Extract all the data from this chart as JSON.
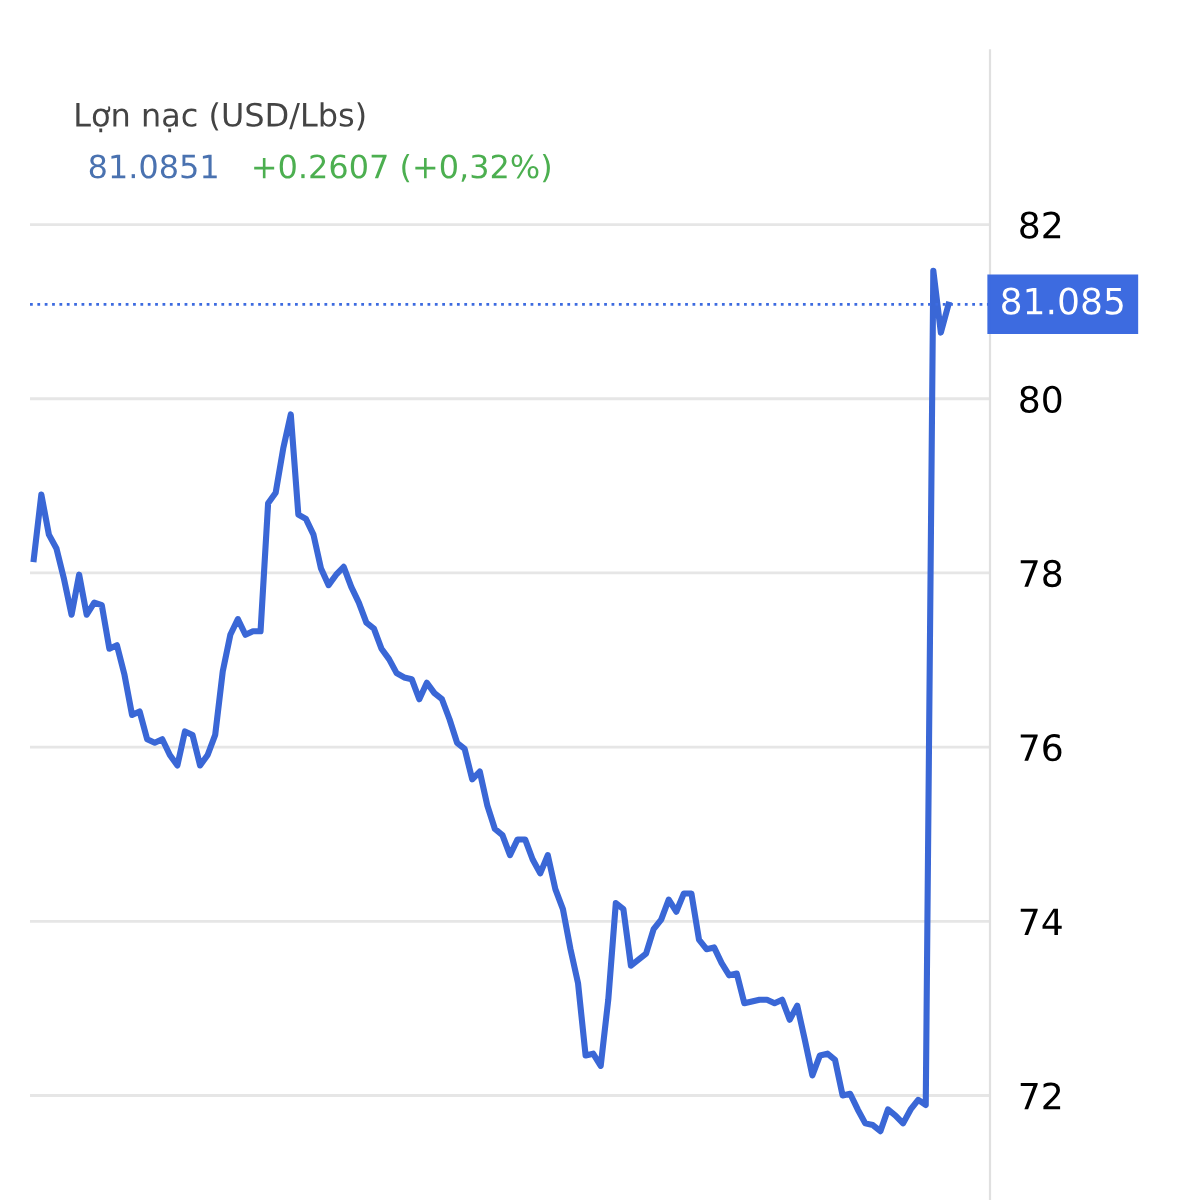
{
  "chart_data": {
    "type": "line",
    "title": "Lợn nạc (USD/Lbs)",
    "subtitle": "81.0851",
    "annotations": [
      "+0.2607 (+0,32%)"
    ],
    "categories": [
      null,
      null,
      null,
      null,
      null,
      null,
      null,
      null,
      null,
      null,
      null,
      null,
      null,
      null,
      null,
      null,
      null,
      null,
      null,
      null,
      null,
      null,
      null,
      null,
      null,
      null,
      null,
      null,
      null,
      null,
      null,
      null,
      null,
      null,
      null,
      null,
      null,
      null,
      null,
      null,
      null,
      null,
      null,
      null,
      null,
      null,
      null,
      null,
      null,
      null,
      null,
      null,
      null,
      null,
      null,
      null,
      null,
      null,
      null,
      null,
      null,
      null,
      null,
      null,
      null,
      null,
      null,
      null,
      null,
      null,
      null,
      null,
      null,
      null,
      null,
      null,
      null,
      null,
      null,
      null,
      null,
      null,
      null,
      null,
      null,
      null,
      null,
      null,
      null,
      null,
      null,
      null,
      null,
      null,
      null,
      null,
      null,
      null,
      null,
      null,
      null,
      null,
      null,
      null,
      null,
      null,
      null,
      null,
      null,
      null,
      null,
      null,
      null,
      null,
      null,
      null,
      null,
      null,
      null,
      null,
      null,
      null
    ],
    "series": [
      {
        "color": "#3a67d6",
        "values": [
          78.16,
          78.9,
          78.44,
          78.28,
          77.93,
          77.52,
          77.98,
          77.52,
          77.66,
          77.63,
          77.13,
          77.17,
          76.83,
          76.37,
          76.41,
          76.09,
          76.05,
          76.09,
          75.91,
          75.79,
          76.18,
          76.14,
          75.79,
          75.91,
          76.14,
          76.87,
          77.29,
          77.47,
          77.29,
          77.33,
          77.33,
          78.8,
          78.92,
          79.43,
          79.82,
          78.67,
          78.62,
          78.44,
          78.05,
          77.86,
          77.98,
          78.07,
          77.84,
          77.66,
          77.43,
          77.36,
          77.13,
          77.01,
          76.85,
          76.8,
          76.78,
          76.55,
          76.74,
          76.62,
          76.55,
          76.32,
          76.05,
          75.98,
          75.63,
          75.72,
          75.33,
          75.06,
          74.99,
          74.76,
          74.94,
          74.94,
          74.71,
          74.55,
          74.76,
          74.37,
          74.14,
          73.68,
          73.29,
          72.46,
          72.48,
          72.34,
          73.1,
          74.21,
          74.14,
          73.49,
          73.56,
          73.63,
          73.91,
          74.02,
          74.25,
          74.11,
          74.32,
          74.32,
          73.79,
          73.68,
          73.7,
          73.52,
          73.38,
          73.4,
          73.06,
          73.08,
          73.1,
          73.1,
          73.06,
          73.1,
          72.87,
          73.03,
          72.64,
          72.23,
          72.46,
          72.48,
          72.41,
          72.0,
          72.02,
          71.84,
          71.68,
          71.66,
          71.59,
          71.84,
          71.77,
          71.68,
          71.84,
          71.95,
          71.89,
          81.47,
          80.76,
          81.08
        ]
      }
    ],
    "ylim": [
      70.8,
      84.0
    ],
    "yticks": [
      72,
      74,
      76,
      78,
      80,
      82
    ],
    "grid": "y",
    "ref_lines": [
      {
        "axis": "y",
        "value": 81.085,
        "label": "81.085",
        "color": "#3d6be0",
        "line_style": "dotted"
      }
    ]
  }
}
